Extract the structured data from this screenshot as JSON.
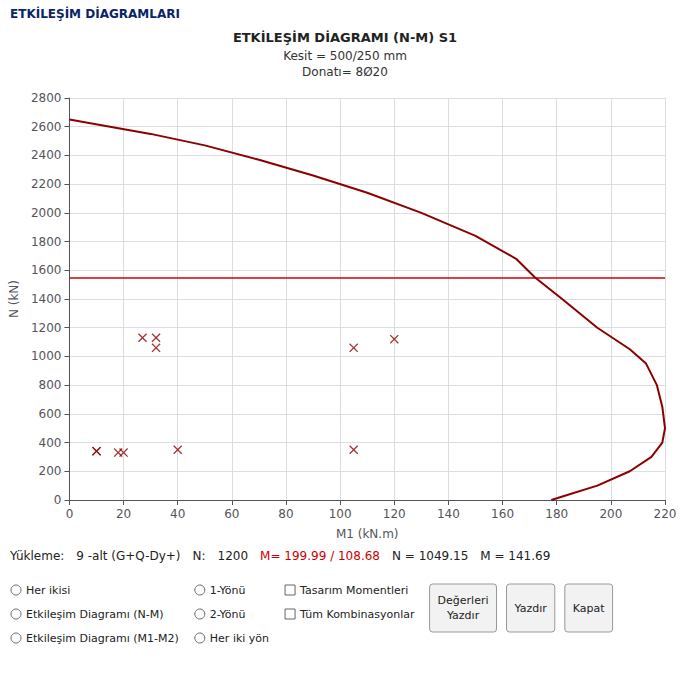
{
  "chart_data": {
    "type": "line",
    "title": "ETKİLEŞİM DİAGRAMI (N-M) S1",
    "subtitle": "Kesit = 500/250 mm\nDonatı= 8Ø20",
    "x_label": "M1 (kN.m)",
    "y_label": "N (kN)",
    "xlim": [
      0,
      220
    ],
    "ylim": [
      0,
      2800
    ],
    "xticks": [
      0,
      20,
      40,
      60,
      80,
      100,
      120,
      140,
      160,
      180,
      200,
      220
    ],
    "yticks": [
      0,
      200,
      400,
      600,
      800,
      1000,
      1200,
      1400,
      1600,
      1800,
      2000,
      2200,
      2400,
      2600,
      2800
    ],
    "grid": true,
    "series": [
      {
        "type": "line",
        "color": "#8b0000",
        "x": [
          0,
          15,
          30,
          50,
          70,
          90,
          110,
          130,
          150,
          165,
          172,
          182,
          195,
          207,
          213,
          217,
          219,
          220,
          219,
          215,
          207,
          195,
          183,
          178
        ],
        "values": [
          2650,
          2600,
          2550,
          2470,
          2370,
          2260,
          2140,
          2000,
          1840,
          1680,
          1550,
          1400,
          1200,
          1050,
          950,
          800,
          650,
          500,
          400,
          300,
          200,
          100,
          30,
          0
        ]
      },
      {
        "type": "hline",
        "color": "#cc0000",
        "values": [
          1550
        ]
      },
      {
        "type": "scatter",
        "marker": "x",
        "color": "#8b0000",
        "x": [
          10,
          18,
          27,
          32,
          40,
          105,
          120,
          10,
          20,
          32,
          105
        ],
        "values": [
          340,
          330,
          1130,
          1060,
          350,
          350,
          1120,
          340,
          330,
          1130,
          1060
        ]
      }
    ],
    "annotations": [
      "ETKİLEŞİM DİAGRAMLARI",
      [
        "Yükleme:",
        "9 -alt (G+Q-Dy+)",
        "N:",
        "1200",
        {
          "text": "M= 199.99 / 108.68",
          "color": "#cc0000"
        },
        "N = 1049.15",
        "M = 141.69"
      ],
      [
        "Her ikisi",
        "Etkileşim Diagramı (N-M)",
        "Etkileşim Diagramı (M1-M2)"
      ],
      [
        "1-Yönü",
        "2-Yönü",
        "Her iki yön"
      ],
      [
        "Tasarım Momentleri",
        "Tüm Kombinasyonlar"
      ],
      [
        "Değerleri\nYazdır",
        "Yazdır",
        "Kapat"
      ]
    ]
  }
}
